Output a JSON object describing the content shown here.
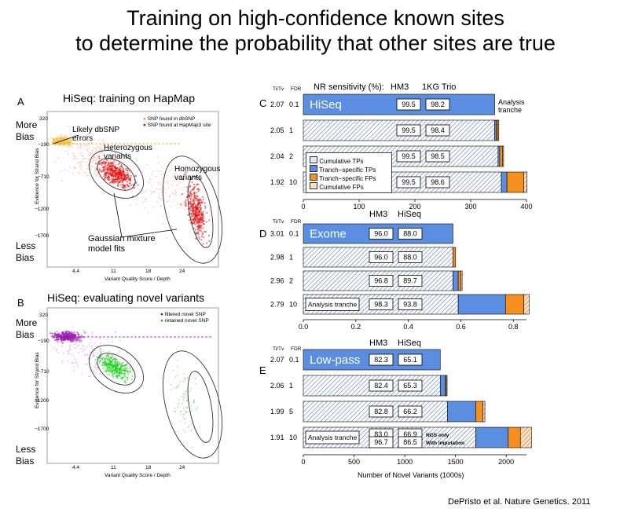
{
  "title": {
    "line1": "Training on high-confidence known sites",
    "line2": "to determine the probability that other sites are true"
  },
  "citation": "DePristo et al. Nature Genetics. 2011",
  "panel_a": {
    "letter": "A",
    "title": "HiSeq: training on HapMap",
    "more_bias": "More Bias",
    "less_bias": "Less Bias",
    "ylabel": "Evidence for Strand Bias",
    "xlabel": "Variant Quality Score / Depth",
    "yticks": [
      "320",
      "−190",
      "−710",
      "−1200",
      "−1700"
    ],
    "xticks": [
      "4.4",
      "11",
      "18",
      "24"
    ],
    "legend": [
      "SNP found in dbSNP",
      "SNP found at HapMap3 site"
    ],
    "annotations": {
      "likely": "Likely dbSNP errors",
      "het": "Heterozygous variants",
      "hom": "Homozygous variants",
      "gmm": "Gaussian mixture model fits"
    }
  },
  "panel_b": {
    "letter": "B",
    "title": "HiSeq: evaluating novel variants",
    "more_bias": "More Bias",
    "less_bias": "Less Bias",
    "ylabel": "Evidence for Strand Bias",
    "xlabel": "Variant Quality Score / Depth",
    "yticks": [
      "320",
      "−190",
      "−710",
      "−1200",
      "−1700"
    ],
    "xticks": [
      "4.4",
      "11",
      "18",
      "24"
    ],
    "legend": [
      "filtered novel SNP",
      "retained novel SNP"
    ]
  },
  "panel_c": {
    "letter": "C",
    "tv_head": "Ti/Tv",
    "fdr_head": "FDR",
    "sens_label": "NR sensitivity (%):",
    "col1": "HM3",
    "col2": "1KG Trio",
    "name": "HiSeq",
    "analysis_note": "Analysis tranche",
    "legend": [
      "Cumulative TPs",
      "Tranch−specific TPs",
      "Tranch−specific FPs",
      "Cumulative FPs"
    ],
    "xticks": [
      "0",
      "100",
      "200",
      "300",
      "400"
    ]
  },
  "panel_d": {
    "letter": "D",
    "tv_head": "Ti/Tv",
    "fdr_head": "FDR",
    "col1": "HM3",
    "col2": "HiSeq",
    "name": "Exome",
    "analysis_label": "Analysis tranche",
    "xticks": [
      "0.0",
      "0.2",
      "0.4",
      "0.6",
      "0.8"
    ]
  },
  "panel_e": {
    "letter": "E",
    "tv_head": "Ti/Tv",
    "fdr_head": "FDR",
    "col1": "HM3",
    "col2": "HiSeq",
    "name": "Low-pass",
    "analysis_label": "Analysis tranche",
    "ngs_only": "NGS only",
    "with_imputation": "With imputation",
    "xticks": [
      "0",
      "500",
      "1000",
      "1500",
      "2000"
    ],
    "xlabel": "Number of Novel Variants (1000s)"
  },
  "chart_data": [
    {
      "type": "bar",
      "panel": "C",
      "xlim": [
        0,
        400
      ],
      "rows": [
        {
          "titv": "2.07",
          "fdr": "0.1",
          "s1": "99.5",
          "s2": "98.2",
          "cum_tp": 0,
          "spec_tp": 343,
          "spec_fp": 0,
          "cum_fp": 0
        },
        {
          "titv": "2.05",
          "fdr": "1",
          "s1": "99.5",
          "s2": "98.4",
          "cum_tp": 343,
          "spec_tp": 3,
          "spec_fp": 3,
          "cum_fp": 1
        },
        {
          "titv": "2.04",
          "fdr": "2",
          "s1": "99.5",
          "s2": "98.5",
          "cum_tp": 349,
          "spec_tp": 3,
          "spec_fp": 5,
          "cum_fp": 2
        },
        {
          "titv": "1.92",
          "fdr": "10",
          "s1": "99.5",
          "s2": "98.6",
          "cum_tp": 355,
          "spec_tp": 10,
          "spec_fp": 30,
          "cum_fp": 6
        }
      ]
    },
    {
      "type": "bar",
      "panel": "D",
      "xlim": [
        0,
        0.85
      ],
      "rows": [
        {
          "titv": "3.01",
          "fdr": "0.1",
          "s1": "96.0",
          "s2": "88.0",
          "cum_tp": 0,
          "spec_tp": 0.57,
          "spec_fp": 0,
          "cum_fp": 0
        },
        {
          "titv": "2.98",
          "fdr": "1",
          "s1": "96.0",
          "s2": "88.0",
          "cum_tp": 0.57,
          "spec_tp": 0.0,
          "spec_fp": 0.01,
          "cum_fp": 0.0
        },
        {
          "titv": "2.96",
          "fdr": "2",
          "s1": "96.8",
          "s2": "89.7",
          "cum_tp": 0.57,
          "spec_tp": 0.02,
          "spec_fp": 0.01,
          "cum_fp": 0.005
        },
        {
          "titv": "2.79",
          "fdr": "10",
          "s1": "98.3",
          "s2": "93.8",
          "cum_tp": 0.59,
          "spec_tp": 0.18,
          "spec_fp": 0.07,
          "cum_fp": 0.02
        }
      ]
    },
    {
      "type": "bar",
      "panel": "E",
      "xlim": [
        0,
        2200
      ],
      "rows": [
        {
          "titv": "2.07",
          "fdr": "0.1",
          "s1": "82.3",
          "s2": "65.1",
          "cum_tp": 0,
          "spec_tp": 1350,
          "spec_fp": 0,
          "cum_fp": 0
        },
        {
          "titv": "2.06",
          "fdr": "1",
          "s1": "82.4",
          "s2": "65.3",
          "cum_tp": 1350,
          "spec_tp": 50,
          "spec_fp": 10,
          "cum_fp": 5
        },
        {
          "titv": "1.99",
          "fdr": "5",
          "s1": "82.8",
          "s2": "66.2",
          "cum_tp": 1420,
          "spec_tp": 280,
          "spec_fp": 70,
          "cum_fp": 20
        },
        {
          "titv": "1.91",
          "fdr": "10",
          "s1": "83.0",
          "s2": "66.9",
          "s3": "96.7",
          "s4": "86.5",
          "cum_tp": 1700,
          "spec_tp": 320,
          "spec_fp": 120,
          "cum_fp": 110
        }
      ]
    }
  ]
}
